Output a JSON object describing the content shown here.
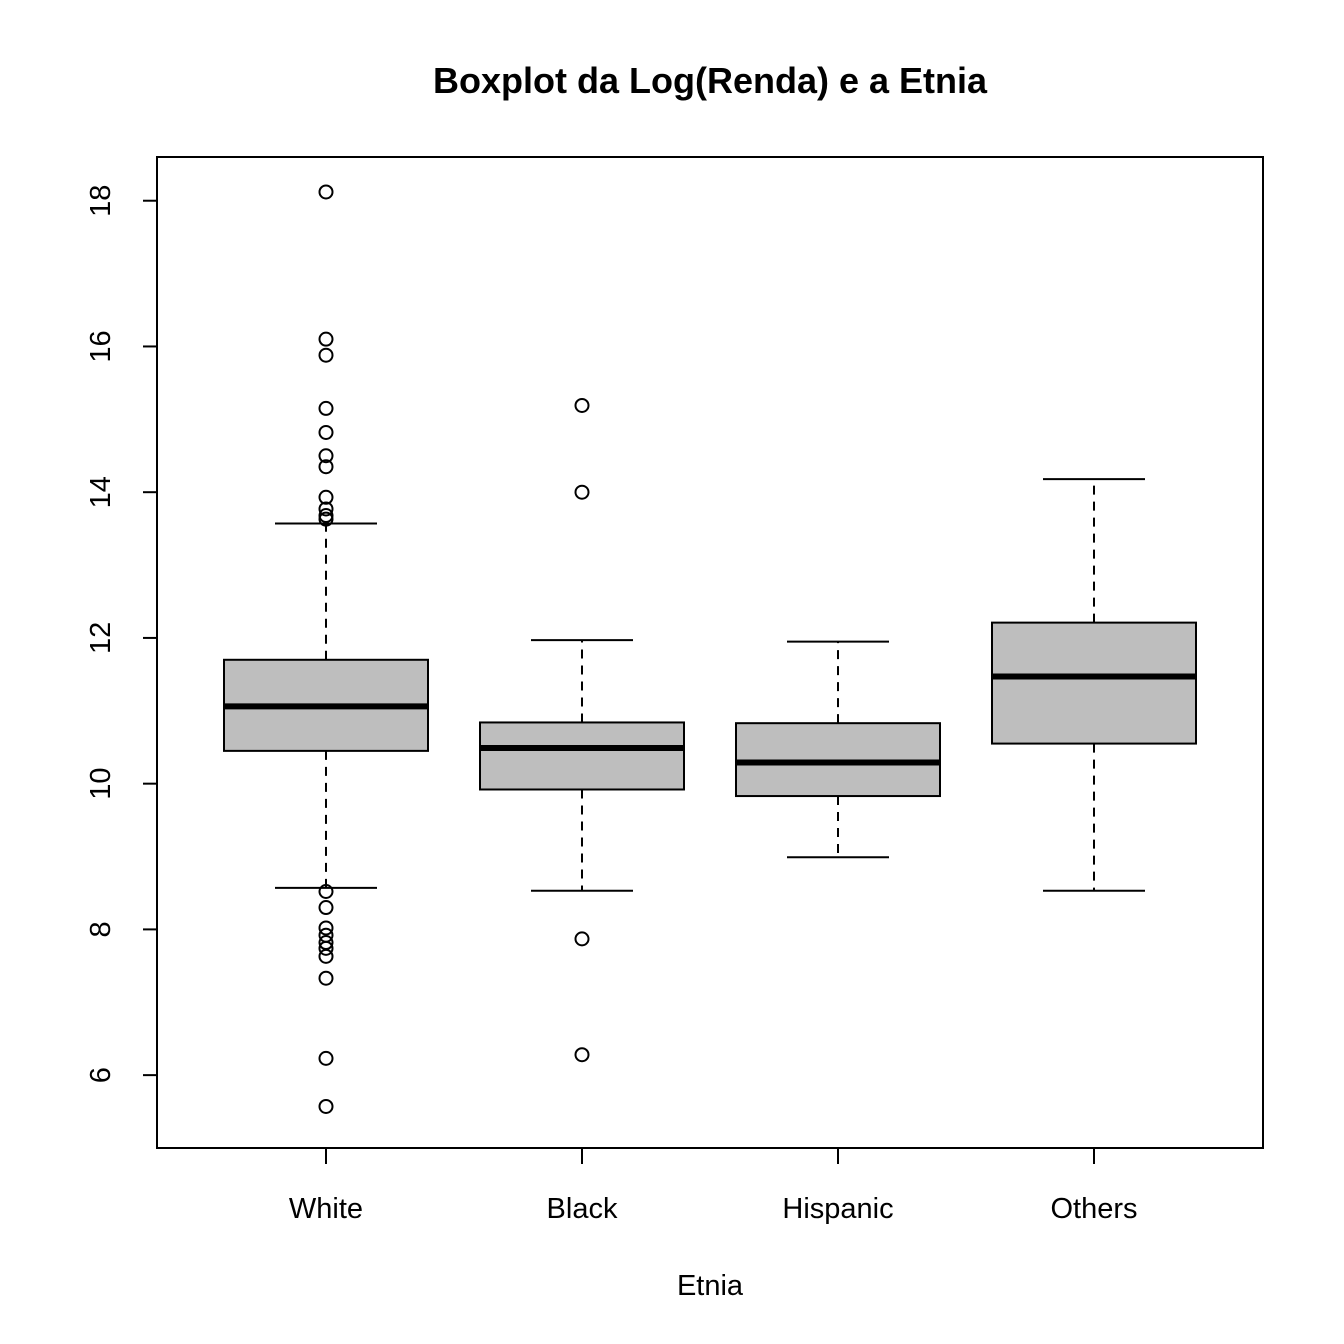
{
  "chart_data": {
    "type": "boxplot",
    "title": "Boxplot da Log(Renda) e a Etnia",
    "xlabel": "Etnia",
    "ylabel": "",
    "ylim": [
      5.0,
      18.6
    ],
    "yticks": [
      6,
      8,
      10,
      12,
      14,
      16,
      18
    ],
    "categories": [
      "White",
      "Black",
      "Hispanic",
      "Others"
    ],
    "box_fill": "#bebebe",
    "boxes": [
      {
        "category": "White",
        "whisker_low": 8.57,
        "q1": 10.45,
        "median": 11.06,
        "q3": 11.7,
        "whisker_high": 13.57,
        "outliers": [
          18.12,
          16.1,
          15.88,
          15.15,
          14.82,
          14.5,
          14.35,
          13.93,
          13.77,
          13.68,
          13.63,
          8.52,
          8.3,
          8.02,
          7.92,
          7.82,
          7.74,
          7.63,
          7.33,
          6.23,
          5.57
        ]
      },
      {
        "category": "Black",
        "whisker_low": 8.53,
        "q1": 9.92,
        "median": 10.49,
        "q3": 10.84,
        "whisker_high": 11.97,
        "outliers": [
          15.19,
          14.0,
          7.87,
          6.28
        ]
      },
      {
        "category": "Hispanic",
        "whisker_low": 8.99,
        "q1": 9.83,
        "median": 10.29,
        "q3": 10.83,
        "whisker_high": 11.95,
        "outliers": []
      },
      {
        "category": "Others",
        "whisker_low": 8.53,
        "q1": 10.55,
        "median": 11.47,
        "q3": 12.21,
        "whisker_high": 14.18,
        "outliers": []
      }
    ]
  }
}
